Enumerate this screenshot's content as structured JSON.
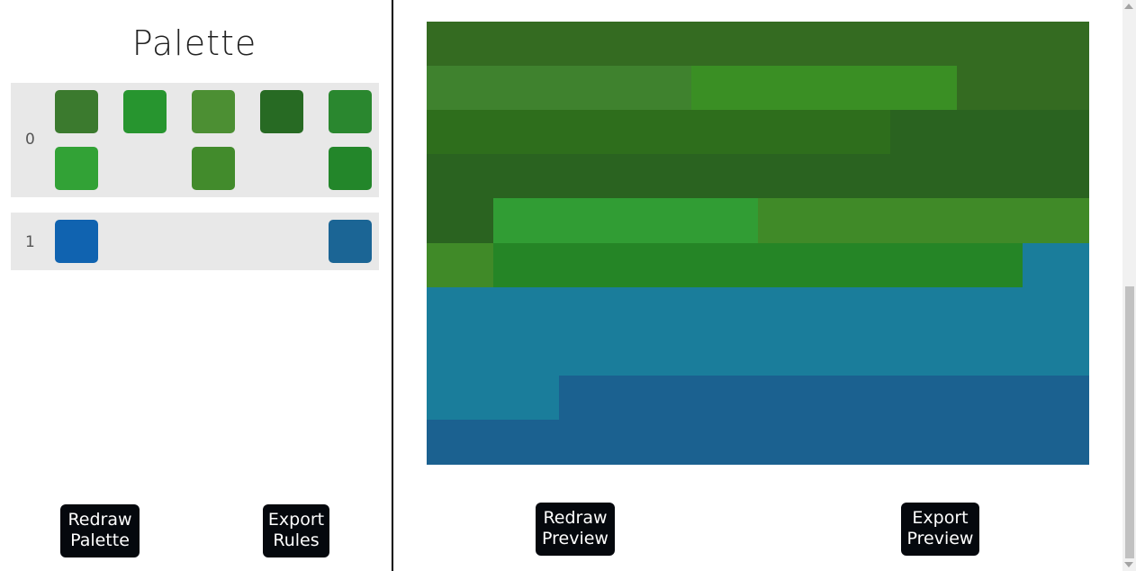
{
  "palette_title": "Palette",
  "groups": [
    {
      "label": "0",
      "swatch_colors": [
        "#3b7a2e",
        "#27952f",
        "#4c8f33",
        "#276a23",
        "#2a872f",
        "#32a236",
        "#428b2c",
        "#23862a"
      ]
    },
    {
      "label": "1",
      "swatch_colors": [
        "#1063b0",
        "#1b6595"
      ]
    }
  ],
  "buttons": {
    "redraw_palette": [
      "Redraw",
      "Palette"
    ],
    "export_rules": [
      "Export",
      "Rules"
    ],
    "redraw_preview": [
      "Redraw",
      "Preview"
    ],
    "export_preview": [
      "Export",
      "Preview"
    ]
  },
  "preview": {
    "columns": 10,
    "rows": [
      [
        "#346b21",
        "#346b21",
        "#346b21",
        "#346b21",
        "#346b21",
        "#346b21",
        "#346b21",
        "#346b21",
        "#346b21",
        "#346b21"
      ],
      [
        "#3f822e",
        "#3f822e",
        "#3f822e",
        "#3f822e",
        "#3a8f24",
        "#3a8f24",
        "#3a8f24",
        "#3a8f24",
        "#346b21",
        "#346b21"
      ],
      [
        "#2e6e1c",
        "#2e6e1c",
        "#2e6e1c",
        "#2e6e1c",
        "#2e6e1c",
        "#2e6e1c",
        "#2e6e1c",
        "#2a6320",
        "#2a6320",
        "#2a6320"
      ],
      [
        "#2a6320",
        "#2a6320",
        "#2a6320",
        "#2a6320",
        "#2a6320",
        "#2a6320",
        "#2a6320",
        "#2a6320",
        "#2a6320",
        "#2a6320"
      ],
      [
        "#2a6320",
        "#319d34",
        "#319d34",
        "#319d34",
        "#319d34",
        "#408a28",
        "#408a28",
        "#408a28",
        "#408a28",
        "#408a28"
      ],
      [
        "#408a28",
        "#258526",
        "#258526",
        "#258526",
        "#258526",
        "#258526",
        "#258526",
        "#258526",
        "#258526",
        "#1a7d9b"
      ],
      [
        "#1a7d9b",
        "#1a7d9b",
        "#1a7d9b",
        "#1a7d9b",
        "#1a7d9b",
        "#1a7d9b",
        "#1a7d9b",
        "#1a7d9b",
        "#1a7d9b",
        "#1a7d9b"
      ],
      [
        "#1a7d9b",
        "#1a7d9b",
        "#1a7d9b",
        "#1a7d9b",
        "#1a7d9b",
        "#1a7d9b",
        "#1a7d9b",
        "#1a7d9b",
        "#1a7d9b",
        "#1a7d9b"
      ],
      [
        "#1a7d9b",
        "#1a7d9b",
        "#1b6190",
        "#1b6190",
        "#1b6190",
        "#1b6190",
        "#1b6190",
        "#1b6190",
        "#1b6190",
        "#1b6190"
      ],
      [
        "#1b6190",
        "#1b6190",
        "#1b6190",
        "#1b6190",
        "#1b6190",
        "#1b6190",
        "#1b6190",
        "#1b6190",
        "#1b6190",
        "#1b6190"
      ]
    ]
  }
}
